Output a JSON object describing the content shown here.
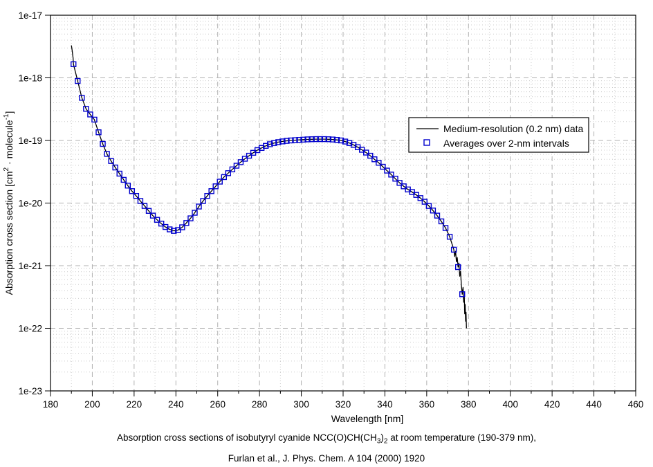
{
  "accent_colors": {
    "line": "#000000",
    "marker": "#0000cc",
    "grid_major": "#b0b0b0",
    "grid_minor": "#cccccc",
    "frame": "#000000",
    "background": "#ffffff"
  },
  "caption": {
    "line1_parts": [
      {
        "t": "Absorption cross sections of isobutyryl cyanide NCC(O)CH(CH"
      },
      {
        "t": "3",
        "sub": true
      },
      {
        "t": ")"
      },
      {
        "t": "2",
        "sub": true
      },
      {
        "t": " at room temperature (190-379 nm),"
      }
    ],
    "line2": "Furlan et al., J. Phys. Chem. A 104 (2000) 1920"
  },
  "chart_data": {
    "type": "line",
    "title": "",
    "xlabel": "Wavelength [nm]",
    "ylabel": "Absorption cross section [cm2 · molecule-1]",
    "ylabel_parts": [
      {
        "t": "Absorption cross section [cm"
      },
      {
        "t": "2",
        "sup": true
      },
      {
        "t": " · molecule"
      },
      {
        "t": "-1",
        "sup": true
      },
      {
        "t": "]"
      }
    ],
    "x_axis": {
      "min": 180,
      "max": 460,
      "major_step": 20,
      "minor_step": 10,
      "tick_labels": [
        "180",
        "200",
        "220",
        "240",
        "260",
        "280",
        "300",
        "320",
        "340",
        "360",
        "380",
        "400",
        "420",
        "440",
        "460"
      ]
    },
    "y_axis": {
      "scale": "log",
      "min": 1e-23,
      "max": 1e-17,
      "tick_labels": [
        "1e-17",
        "1e-18",
        "1e-19",
        "1e-20",
        "1e-21",
        "1e-22",
        "1e-23"
      ]
    },
    "grid": {
      "major_style": "dashed",
      "minor_style": "dotted",
      "minor_x_every_nm": 10,
      "minor_y": "log decades 2-9"
    },
    "legend": {
      "position": "upper-right-inside",
      "entries": [
        {
          "label": "Medium-resolution (0.2 nm) data",
          "marker": "line",
          "color": "#000000"
        },
        {
          "label": "Averages over 2-nm intervals",
          "marker": "open-square",
          "color": "#0000cc"
        }
      ]
    },
    "series": [
      {
        "name": "Medium-resolution (0.2 nm) data",
        "type": "line",
        "color": "#000000",
        "note": "drawn as head points + averages backbone (191-373 nm) + noisy tail points",
        "points_head": [
          [
            190,
            3.3e-18
          ],
          [
            190.4,
            2.7e-18
          ],
          [
            190.8,
            2.1e-18
          ]
        ],
        "points_tail": [
          [
            373.4,
            1.4e-21
          ],
          [
            373.8,
            1.7e-21
          ],
          [
            374.2,
            1.15e-21
          ],
          [
            374.6,
            1.35e-21
          ],
          [
            375,
            9.5e-22
          ],
          [
            375.4,
            1.1e-21
          ],
          [
            375.8,
            6.8e-22
          ],
          [
            376.2,
            8.2e-22
          ],
          [
            376.6,
            4.8e-22
          ],
          [
            377,
            3.5e-22
          ],
          [
            377.4,
            4.5e-22
          ],
          [
            377.7,
            2.6e-22
          ],
          [
            378,
            3.2e-22
          ],
          [
            378.2,
            1.7e-22
          ],
          [
            378.4,
            2.4e-22
          ],
          [
            378.6,
            1.3e-22
          ],
          [
            378.8,
            1.8e-22
          ],
          [
            379,
            1e-22
          ]
        ]
      },
      {
        "name": "Averages over 2-nm intervals",
        "type": "scatter",
        "marker": "open-square",
        "color": "#0000cc",
        "points": [
          [
            191,
            1.65e-18
          ],
          [
            193,
            8.9e-19
          ],
          [
            195,
            4.8e-19
          ],
          [
            197,
            3.2e-19
          ],
          [
            199,
            2.6e-19
          ],
          [
            201,
            2.15e-19
          ],
          [
            203,
            1.35e-19
          ],
          [
            205,
            8.8e-20
          ],
          [
            207,
            6.1e-20
          ],
          [
            209,
            4.7e-20
          ],
          [
            211,
            3.7e-20
          ],
          [
            213,
            2.95e-20
          ],
          [
            215,
            2.35e-20
          ],
          [
            217,
            1.9e-20
          ],
          [
            219,
            1.55e-20
          ],
          [
            221,
            1.3e-20
          ],
          [
            223,
            1.08e-20
          ],
          [
            225,
            9e-21
          ],
          [
            227,
            7.5e-21
          ],
          [
            229,
            6.3e-21
          ],
          [
            231,
            5.4e-21
          ],
          [
            233,
            4.7e-21
          ],
          [
            235,
            4.15e-21
          ],
          [
            237,
            3.8e-21
          ],
          [
            239,
            3.6e-21
          ],
          [
            241,
            3.7e-21
          ],
          [
            243,
            4.1e-21
          ],
          [
            245,
            4.8e-21
          ],
          [
            247,
            5.7e-21
          ],
          [
            249,
            7e-21
          ],
          [
            251,
            8.8e-21
          ],
          [
            253,
            1.08e-20
          ],
          [
            255,
            1.3e-20
          ],
          [
            257,
            1.55e-20
          ],
          [
            259,
            1.85e-20
          ],
          [
            261,
            2.2e-20
          ],
          [
            263,
            2.6e-20
          ],
          [
            265,
            3e-20
          ],
          [
            267,
            3.45e-20
          ],
          [
            269,
            3.95e-20
          ],
          [
            271,
            4.5e-20
          ],
          [
            273,
            5.1e-20
          ],
          [
            275,
            5.7e-20
          ],
          [
            277,
            6.35e-20
          ],
          [
            279,
            7e-20
          ],
          [
            281,
            7.6e-20
          ],
          [
            283,
            8.2e-20
          ],
          [
            285,
            8.7e-20
          ],
          [
            287,
            9.1e-20
          ],
          [
            289,
            9.4e-20
          ],
          [
            291,
            9.65e-20
          ],
          [
            293,
            9.85e-20
          ],
          [
            295,
            1e-19
          ],
          [
            297,
            1.01e-19
          ],
          [
            299,
            1.02e-19
          ],
          [
            301,
            1.03e-19
          ],
          [
            303,
            1.04e-19
          ],
          [
            305,
            1.045e-19
          ],
          [
            307,
            1.05e-19
          ],
          [
            309,
            1.05e-19
          ],
          [
            311,
            1.05e-19
          ],
          [
            313,
            1.045e-19
          ],
          [
            315,
            1.035e-19
          ],
          [
            317,
            1.02e-19
          ],
          [
            319,
            1e-19
          ],
          [
            321,
            9.6e-20
          ],
          [
            323,
            9.1e-20
          ],
          [
            325,
            8.5e-20
          ],
          [
            327,
            7.8e-20
          ],
          [
            329,
            7.1e-20
          ],
          [
            331,
            6.4e-20
          ],
          [
            333,
            5.7e-20
          ],
          [
            335,
            5e-20
          ],
          [
            337,
            4.4e-20
          ],
          [
            339,
            3.8e-20
          ],
          [
            341,
            3.3e-20
          ],
          [
            343,
            2.85e-20
          ],
          [
            345,
            2.45e-20
          ],
          [
            347,
            2.1e-20
          ],
          [
            349,
            1.85e-20
          ],
          [
            351,
            1.65e-20
          ],
          [
            353,
            1.5e-20
          ],
          [
            355,
            1.35e-20
          ],
          [
            357,
            1.2e-20
          ],
          [
            359,
            1.05e-20
          ],
          [
            361,
            9e-21
          ],
          [
            363,
            7.6e-21
          ],
          [
            365,
            6.3e-21
          ],
          [
            367,
            5.1e-21
          ],
          [
            369,
            4e-21
          ],
          [
            371,
            2.9e-21
          ],
          [
            373,
            1.8e-21
          ],
          [
            375,
            9.5e-22
          ],
          [
            377,
            3.5e-22
          ]
        ]
      }
    ]
  }
}
